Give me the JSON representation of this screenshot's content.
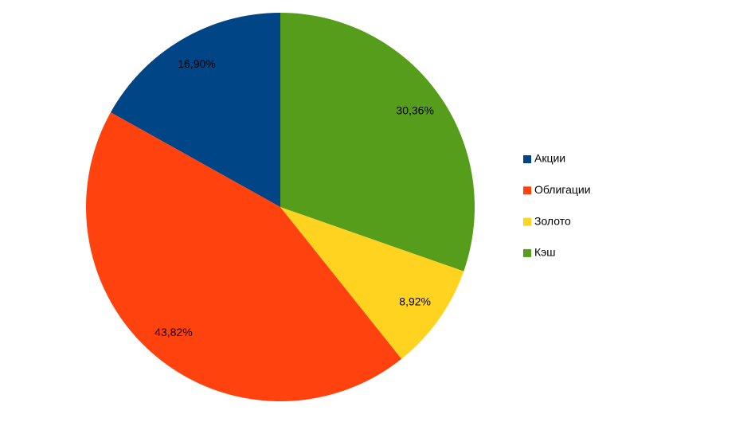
{
  "chart_data": {
    "type": "pie",
    "categories": [
      "Акции",
      "Облигации",
      "Золото",
      "Кэш"
    ],
    "values": [
      16.9,
      43.82,
      8.92,
      30.36
    ],
    "value_labels": [
      "16,90%",
      "43,82%",
      "8,92%",
      "30,36%"
    ],
    "colors": [
      "#004586",
      "#ff420e",
      "#ffd320",
      "#579d1c"
    ],
    "legend": "right"
  }
}
